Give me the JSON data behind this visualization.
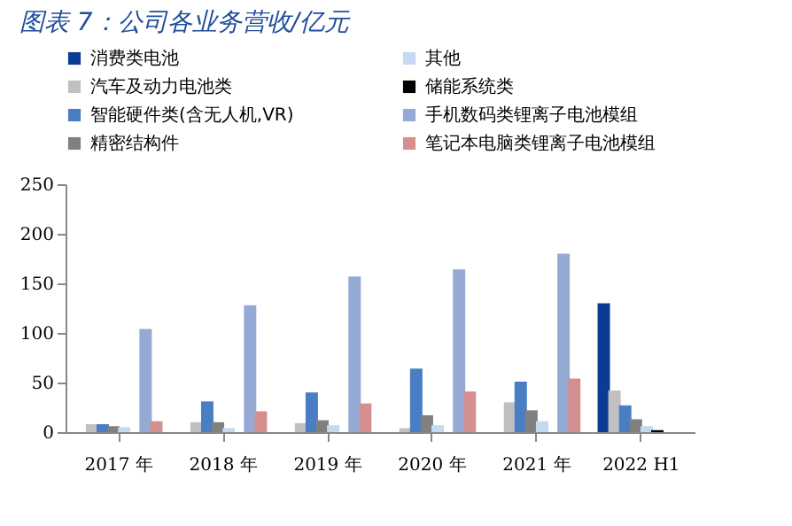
{
  "chart_data": {
    "type": "bar",
    "title": "图表 7：公司各业务营收/亿元",
    "categories": [
      "2017 年",
      "2018 年",
      "2019 年",
      "2020 年",
      "2021 年",
      "2022 H1"
    ],
    "series": [
      {
        "name": "消费类电池",
        "color": "#0a3d91",
        "values": [
          null,
          null,
          null,
          null,
          null,
          130
        ]
      },
      {
        "name": "汽车及动力电池类",
        "color": "#c0c0c0",
        "values": [
          8,
          10,
          9,
          4,
          30,
          42
        ]
      },
      {
        "name": "智能硬件类(含无人机,VR)",
        "color": "#4a7ec4",
        "values": [
          8,
          31,
          40,
          64,
          51,
          27
        ]
      },
      {
        "name": "精密结构件",
        "color": "#808080",
        "values": [
          6,
          10,
          12,
          17,
          22,
          13
        ]
      },
      {
        "name": "其他",
        "color": "#c5d9f0",
        "values": [
          5,
          4,
          7,
          7,
          11,
          6
        ]
      },
      {
        "name": "储能系统类",
        "color": "#000000",
        "values": [
          null,
          null,
          null,
          null,
          null,
          2
        ]
      },
      {
        "name": "手机数码类锂离子电池模组",
        "color": "#94a9d4",
        "values": [
          104,
          128,
          157,
          164,
          180,
          null
        ]
      },
      {
        "name": "笔记本电脑类锂离子电池模组",
        "color": "#d49090",
        "values": [
          11,
          21,
          29,
          41,
          54,
          null
        ]
      }
    ],
    "ylim": [
      0,
      250
    ],
    "yticks": [
      0,
      50,
      100,
      150,
      200,
      250
    ],
    "grid": false,
    "legend": "top"
  }
}
